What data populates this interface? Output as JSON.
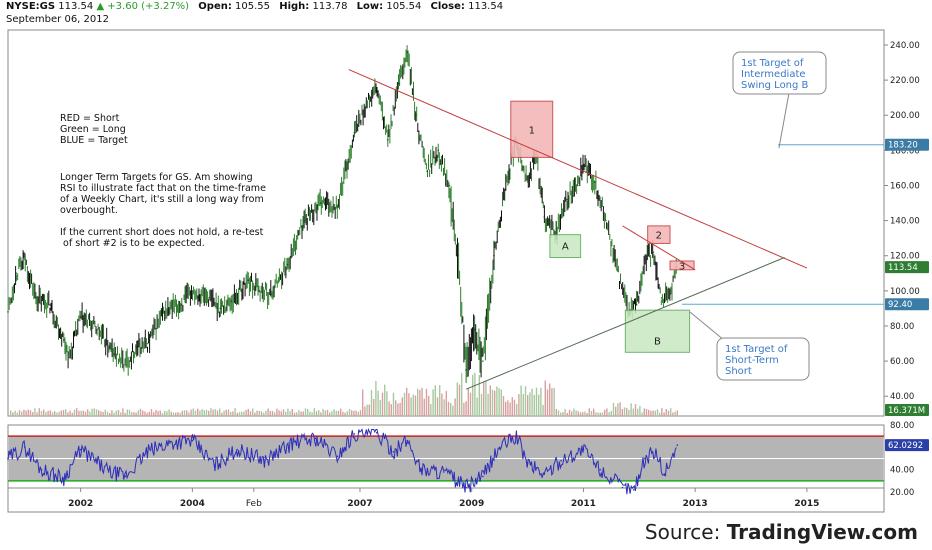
{
  "header": {
    "symbol": "NYSE:GS",
    "last": "113.54",
    "change": "▲ +3.60 (+3.27%)",
    "open_label": "Open:",
    "open": "105.55",
    "high_label": "High:",
    "high": "113.78",
    "low_label": "Low:",
    "low": "105.54",
    "close_label": "Close:",
    "close": "113.54",
    "date": "September 06, 2012"
  },
  "legend_note": "RED = Short\nGreen = Long\nBLUE = Target",
  "comment_note": "Longer Term Targets for GS. Am showing\nRSI to illustrate fact that on the time-frame\nof a Weekly Chart, it's still a long way from\noverbought.\n\nIf the current short does not hold, a re-test\n of short #2 is to be expected.",
  "source": {
    "prefix": "Source: ",
    "brand": "TradingView.com"
  },
  "colors": {
    "price_line": "#1a1a1a",
    "bull": "#2f7f2f",
    "bear": "#111111",
    "short_fill": "#f4b8b8",
    "short_stroke": "#c94444",
    "long_fill": "#c8e8c0",
    "long_stroke": "#57a957",
    "trend_red": "#c23b3b",
    "trend_green": "#556b55",
    "target_line": "#5aaec8",
    "callout_text": "#3a79c7",
    "rsi_line": "#2e2eb8",
    "rsi_bg": "#b5b5b5",
    "rsi_upper": "#cc2222",
    "rsi_lower": "#22aa22",
    "last_badge": "#2e7d32",
    "target_badge": "#2c5f8a",
    "rsi_badge": "#2b3fa8"
  },
  "chart_data": {
    "type": "line",
    "title": "NYSE:GS",
    "xlabel": "",
    "ylabel": "",
    "x_ticks": [
      "2002",
      "2004",
      "Feb",
      "2007",
      "2009",
      "2011",
      "2013",
      "2015"
    ],
    "ylim": [
      30,
      245
    ],
    "y_ticks": [
      "240.00",
      "220.00",
      "200.00",
      "180.00",
      "160.00",
      "140.00",
      "120.00",
      "100.00",
      "80.00",
      "60.00",
      "40.00"
    ],
    "price_series": [
      {
        "x": 2000.7,
        "y": 88
      },
      {
        "x": 2000.85,
        "y": 110
      },
      {
        "x": 2001.0,
        "y": 118
      },
      {
        "x": 2001.2,
        "y": 96
      },
      {
        "x": 2001.45,
        "y": 92
      },
      {
        "x": 2001.7,
        "y": 72
      },
      {
        "x": 2001.8,
        "y": 62
      },
      {
        "x": 2002.0,
        "y": 85
      },
      {
        "x": 2002.3,
        "y": 78
      },
      {
        "x": 2002.6,
        "y": 64
      },
      {
        "x": 2002.8,
        "y": 58
      },
      {
        "x": 2003.0,
        "y": 68
      },
      {
        "x": 2003.2,
        "y": 70
      },
      {
        "x": 2003.5,
        "y": 88
      },
      {
        "x": 2003.8,
        "y": 92
      },
      {
        "x": 2004.0,
        "y": 100
      },
      {
        "x": 2004.3,
        "y": 96
      },
      {
        "x": 2004.5,
        "y": 90
      },
      {
        "x": 2004.7,
        "y": 94
      },
      {
        "x": 2005.0,
        "y": 106
      },
      {
        "x": 2005.2,
        "y": 100
      },
      {
        "x": 2005.4,
        "y": 98
      },
      {
        "x": 2005.7,
        "y": 115
      },
      {
        "x": 2006.0,
        "y": 140
      },
      {
        "x": 2006.3,
        "y": 150
      },
      {
        "x": 2006.6,
        "y": 148
      },
      {
        "x": 2006.9,
        "y": 190
      },
      {
        "x": 2007.1,
        "y": 205
      },
      {
        "x": 2007.3,
        "y": 215
      },
      {
        "x": 2007.5,
        "y": 186
      },
      {
        "x": 2007.7,
        "y": 218
      },
      {
        "x": 2007.85,
        "y": 236
      },
      {
        "x": 2008.0,
        "y": 200
      },
      {
        "x": 2008.2,
        "y": 168
      },
      {
        "x": 2008.4,
        "y": 180
      },
      {
        "x": 2008.6,
        "y": 160
      },
      {
        "x": 2008.75,
        "y": 120
      },
      {
        "x": 2008.9,
        "y": 55
      },
      {
        "x": 2009.05,
        "y": 78
      },
      {
        "x": 2009.2,
        "y": 60
      },
      {
        "x": 2009.4,
        "y": 120
      },
      {
        "x": 2009.6,
        "y": 158
      },
      {
        "x": 2009.8,
        "y": 186
      },
      {
        "x": 2010.0,
        "y": 162
      },
      {
        "x": 2010.15,
        "y": 178
      },
      {
        "x": 2010.3,
        "y": 142
      },
      {
        "x": 2010.5,
        "y": 132
      },
      {
        "x": 2010.7,
        "y": 152
      },
      {
        "x": 2010.9,
        "y": 160
      },
      {
        "x": 2011.0,
        "y": 172
      },
      {
        "x": 2011.2,
        "y": 162
      },
      {
        "x": 2011.4,
        "y": 140
      },
      {
        "x": 2011.6,
        "y": 112
      },
      {
        "x": 2011.8,
        "y": 88
      },
      {
        "x": 2011.95,
        "y": 92
      },
      {
        "x": 2012.1,
        "y": 118
      },
      {
        "x": 2012.25,
        "y": 122
      },
      {
        "x": 2012.4,
        "y": 96
      },
      {
        "x": 2012.55,
        "y": 98
      },
      {
        "x": 2012.68,
        "y": 113.54
      }
    ],
    "last_price": "113.54",
    "target_levels": [
      "183.20",
      "92.40"
    ],
    "volume_label": "16.371M",
    "rsi": {
      "ylim": [
        15,
        80
      ],
      "y_ticks": [
        "80.00",
        "60.00",
        "40.00",
        "20.00"
      ],
      "upper_band": 70,
      "lower_band": 30,
      "last": "62.0292",
      "series": [
        {
          "x": 2000.7,
          "y": 50
        },
        {
          "x": 2001.0,
          "y": 60
        },
        {
          "x": 2001.3,
          "y": 40
        },
        {
          "x": 2001.7,
          "y": 32
        },
        {
          "x": 2002.0,
          "y": 58
        },
        {
          "x": 2002.5,
          "y": 38
        },
        {
          "x": 2002.8,
          "y": 34
        },
        {
          "x": 2003.2,
          "y": 56
        },
        {
          "x": 2003.6,
          "y": 64
        },
        {
          "x": 2004.0,
          "y": 66
        },
        {
          "x": 2004.4,
          "y": 44
        },
        {
          "x": 2004.8,
          "y": 58
        },
        {
          "x": 2005.3,
          "y": 48
        },
        {
          "x": 2005.8,
          "y": 64
        },
        {
          "x": 2006.2,
          "y": 68
        },
        {
          "x": 2006.6,
          "y": 52
        },
        {
          "x": 2006.9,
          "y": 72
        },
        {
          "x": 2007.3,
          "y": 73
        },
        {
          "x": 2007.6,
          "y": 56
        },
        {
          "x": 2007.85,
          "y": 66
        },
        {
          "x": 2008.1,
          "y": 40
        },
        {
          "x": 2008.5,
          "y": 38
        },
        {
          "x": 2008.9,
          "y": 24
        },
        {
          "x": 2009.2,
          "y": 34
        },
        {
          "x": 2009.5,
          "y": 60
        },
        {
          "x": 2009.8,
          "y": 70
        },
        {
          "x": 2010.0,
          "y": 46
        },
        {
          "x": 2010.3,
          "y": 36
        },
        {
          "x": 2010.6,
          "y": 48
        },
        {
          "x": 2011.0,
          "y": 58
        },
        {
          "x": 2011.3,
          "y": 40
        },
        {
          "x": 2011.7,
          "y": 24
        },
        {
          "x": 2011.9,
          "y": 22
        },
        {
          "x": 2012.1,
          "y": 50
        },
        {
          "x": 2012.3,
          "y": 56
        },
        {
          "x": 2012.45,
          "y": 36
        },
        {
          "x": 2012.68,
          "y": 62
        }
      ]
    },
    "annotations": {
      "short_boxes": [
        {
          "label": "1",
          "x0": 2009.7,
          "x1": 2010.45,
          "y0": 176,
          "y1": 208
        },
        {
          "label": "2",
          "x0": 2012.15,
          "x1": 2012.55,
          "y0": 127,
          "y1": 137
        },
        {
          "label": "3",
          "x0": 2012.55,
          "x1": 2012.98,
          "y0": 112,
          "y1": 117
        }
      ],
      "long_boxes": [
        {
          "label": "A",
          "x0": 2010.4,
          "x1": 2010.95,
          "y0": 119,
          "y1": 132
        },
        {
          "label": "B",
          "x0": 2011.75,
          "x1": 2012.9,
          "y0": 65,
          "y1": 89
        }
      ],
      "trend_lines": [
        {
          "color": "red",
          "x0": 2006.8,
          "y0": 226,
          "x1": 2015.0,
          "y1": 113
        },
        {
          "color": "red",
          "x0": 2011.7,
          "y0": 137,
          "x1": 2013.0,
          "y1": 112
        },
        {
          "color": "green",
          "x0": 2008.9,
          "y0": 44,
          "x1": 2014.6,
          "y1": 119
        }
      ],
      "callouts": [
        {
          "text": "1st Target of\nIntermediate\nSwing Long B",
          "level": "183.20"
        },
        {
          "text": "1st Target of\nShort-Term\nShort",
          "level": "92.40"
        }
      ]
    }
  }
}
